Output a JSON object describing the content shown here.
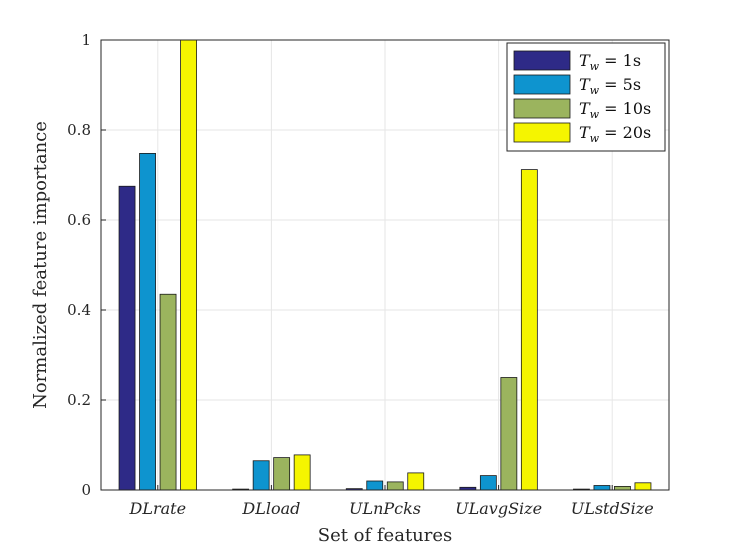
{
  "chart_data": {
    "type": "bar",
    "categories": [
      "DLrate",
      "DLload",
      "ULnPcks",
      "ULavgSize",
      "ULstdSize"
    ],
    "series": [
      {
        "name": "T_w = 1s",
        "label_T": "T",
        "label_sub": "w",
        "label_rest": " = 1s",
        "color": "#2e2a87",
        "values": [
          0.675,
          0.002,
          0.003,
          0.006,
          0.002
        ]
      },
      {
        "name": "T_w = 5s",
        "label_T": "T",
        "label_sub": "w",
        "label_rest": " = 5s",
        "color": "#0e94cf",
        "values": [
          0.748,
          0.065,
          0.02,
          0.032,
          0.01
        ]
      },
      {
        "name": "T_w = 10s",
        "label_T": "T",
        "label_sub": "w",
        "label_rest": " = 10s",
        "color": "#9bb45e",
        "values": [
          0.435,
          0.072,
          0.018,
          0.25,
          0.008
        ]
      },
      {
        "name": "T_w = 20s",
        "label_T": "T",
        "label_sub": "w",
        "label_rest": " = 20s",
        "color": "#f5f500",
        "values": [
          1.0,
          0.078,
          0.038,
          0.712,
          0.016
        ]
      }
    ],
    "xlabel": "Set of features",
    "ylabel": "Normalized feature importance",
    "ylim": [
      0,
      1
    ],
    "yticks": [
      "0",
      "0.2",
      "0.4",
      "0.6",
      "0.8",
      "1"
    ],
    "grid": true,
    "legend_position": "top-right"
  }
}
